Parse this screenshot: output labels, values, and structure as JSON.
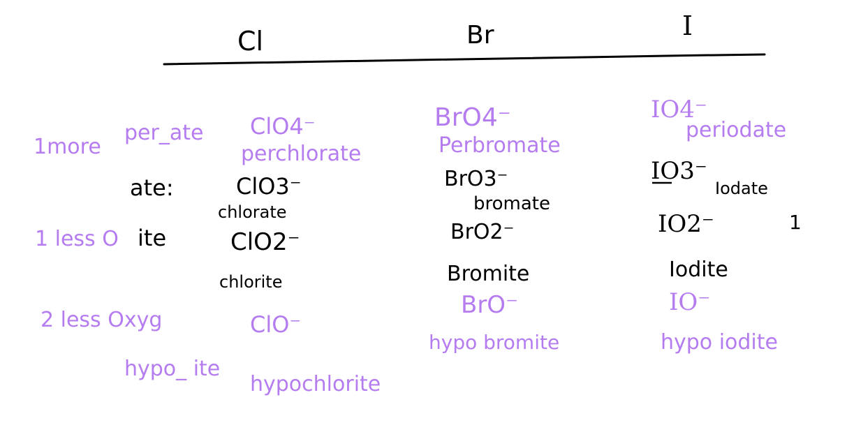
{
  "headers": {
    "cl": "Cl",
    "br": "Br",
    "i": "I"
  },
  "rules": {
    "more": "1more",
    "more_pattern": "per_ate",
    "ate": "ate:",
    "less1": "1 less O",
    "ite": "ite",
    "less2": "2 less Oxyg",
    "hypo_pattern": "hypo_ ite"
  },
  "chlorine": {
    "perchlorate_formula": "ClO4⁻",
    "perchlorate_name": "perchlorate",
    "chlorate_formula": "ClO3⁻",
    "chlorate_name": "chlorate",
    "chlorite_formula": "ClO2⁻",
    "chlorite_name": "chlorite",
    "hypochlorite_formula": "ClO⁻",
    "hypochlorite_name": "hypochlorite"
  },
  "bromine": {
    "perbromate_formula": "BrO4⁻",
    "perbromate_name": "Perbromate",
    "bromate_formula": "BrO3⁻",
    "bromate_name": "bromate",
    "bromite_formula": "BrO2⁻",
    "bromite_name": "Bromite",
    "hypobromite_formula": "BrO⁻",
    "hypobromite_name": "hypo bromite"
  },
  "iodine": {
    "periodate_formula": "IO4⁻",
    "periodate_name": "periodate",
    "iodate_formula": "IO3⁻",
    "iodate_name": "Iodate",
    "iodite_formula": "IO2⁻",
    "iodite_name": "Iodite",
    "hypoiodite_formula": "IO⁻",
    "hypoiodite_name": "hypo iodite",
    "stray_mark": "1"
  },
  "colors": {
    "black_ink": "#000000",
    "purple_ink": "#b57cf0"
  }
}
